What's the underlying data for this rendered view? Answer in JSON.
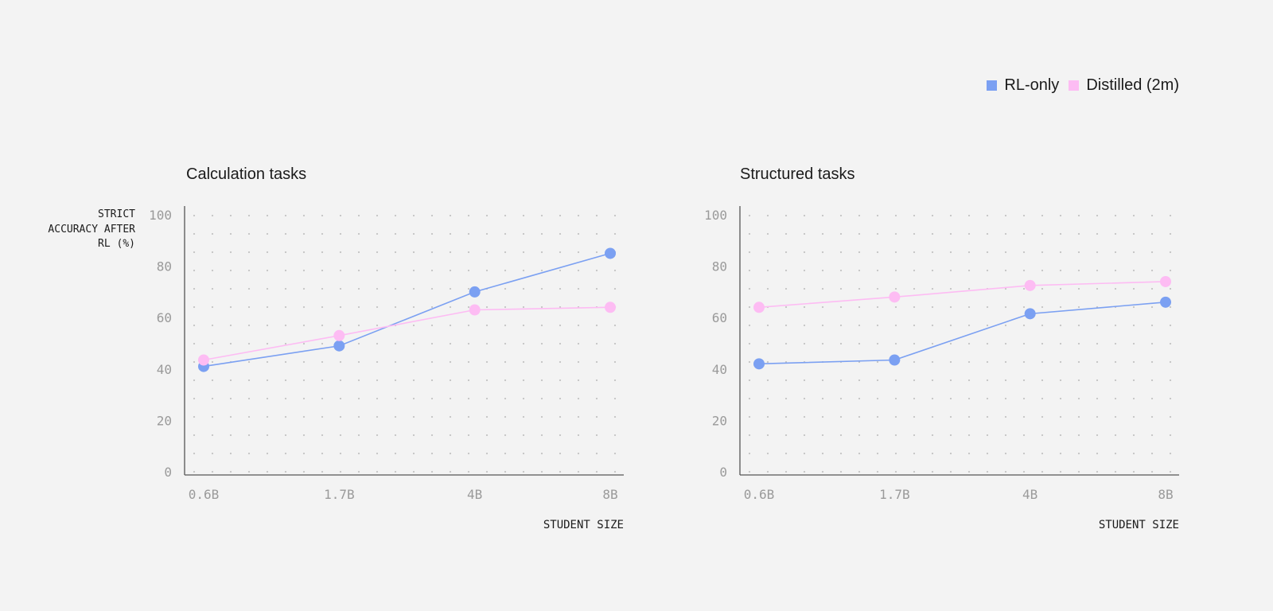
{
  "legend": {
    "items": [
      {
        "label": "RL-only",
        "color": "#7ba0f2"
      },
      {
        "label": "Distilled (2m)",
        "color": "#fdbcf3"
      }
    ]
  },
  "ylabel": "STRICT ACCURACY AFTER RL (%)",
  "xlabel": "STUDENT SIZE",
  "chart_data": [
    {
      "type": "line",
      "title": "Calculation tasks",
      "categories": [
        "0.6B",
        "1.7B",
        "4B",
        "8B"
      ],
      "series": [
        {
          "name": "RL-only",
          "color": "#7ba0f2",
          "values": [
            41,
            49,
            70,
            85
          ]
        },
        {
          "name": "Distilled (2m)",
          "color": "#fdbcf3",
          "values": [
            43.5,
            53,
            63,
            64
          ]
        }
      ],
      "ylim": [
        0,
        100
      ],
      "yticks": [
        0,
        20,
        40,
        60,
        80,
        100
      ],
      "ylabel": "STRICT ACCURACY AFTER RL (%)",
      "xlabel": "STUDENT SIZE",
      "grid": "dotted"
    },
    {
      "type": "line",
      "title": "Structured tasks",
      "categories": [
        "0.6B",
        "1.7B",
        "4B",
        "8B"
      ],
      "series": [
        {
          "name": "RL-only",
          "color": "#7ba0f2",
          "values": [
            42,
            43.5,
            61.5,
            66
          ]
        },
        {
          "name": "Distilled (2m)",
          "color": "#fdbcf3",
          "values": [
            64,
            68,
            72.5,
            74
          ]
        }
      ],
      "ylim": [
        0,
        100
      ],
      "yticks": [
        0,
        20,
        40,
        60,
        80,
        100
      ],
      "xlabel": "STUDENT SIZE",
      "grid": "dotted"
    }
  ]
}
